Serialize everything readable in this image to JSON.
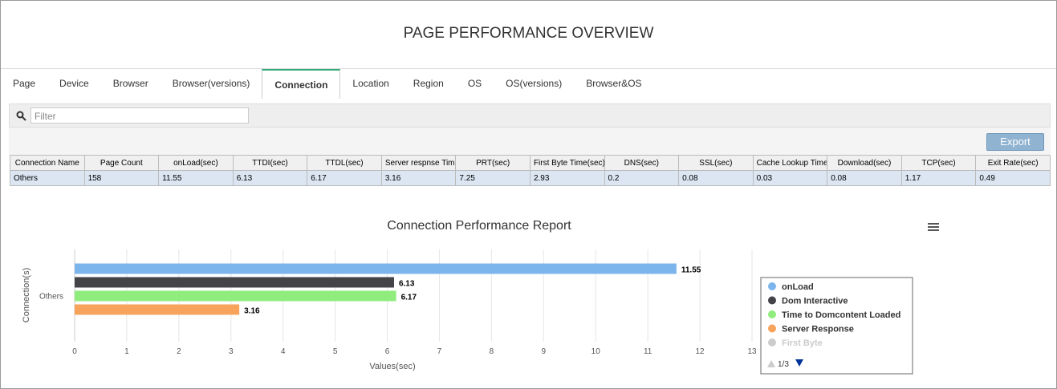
{
  "header": {
    "title": "PAGE PERFORMANCE OVERVIEW"
  },
  "tabs": [
    "Page",
    "Device",
    "Browser",
    "Browser(versions)",
    "Connection",
    "Location",
    "Region",
    "OS",
    "OS(versions)",
    "Browser&OS"
  ],
  "toolbar": {
    "filter_placeholder": "Filter",
    "export": "Export"
  },
  "table": {
    "columns": [
      "Connection Name",
      "Page Count",
      "onLoad(sec)",
      "TTDI(sec)",
      "TTDL(sec)",
      "Server respnse Time",
      "PRT(sec)",
      "First Byte Time(sec)",
      "DNS(sec)",
      "SSL(sec)",
      "Cache Lookup Time",
      "Download(sec)",
      "TCP(sec)",
      "Exit Rate(sec)"
    ],
    "rows": [
      [
        "Others",
        "158",
        "11.55",
        "6.13",
        "6.17",
        "3.16",
        "7.25",
        "2.93",
        "0.2",
        "0.08",
        "0.03",
        "0.08",
        "1.17",
        "0.49"
      ]
    ]
  },
  "chart_data": {
    "type": "bar",
    "orientation": "horizontal",
    "title": "Connection Performance Report",
    "y_label": "Connection(s)",
    "x_label": "Values(sec)",
    "categories": [
      "Others"
    ],
    "series": [
      {
        "name": "onLoad",
        "color": "#7cb5ec",
        "values": [
          11.55
        ]
      },
      {
        "name": "Dom Interactive",
        "color": "#434348",
        "values": [
          6.13
        ]
      },
      {
        "name": "Time to Domcontent Loaded",
        "color": "#90ed7d",
        "values": [
          6.17
        ]
      },
      {
        "name": "Server Response",
        "color": "#f7a35c",
        "values": [
          3.16
        ]
      }
    ],
    "hidden_legend": [
      "First Byte"
    ],
    "legend_pager": "1/3",
    "xlim": [
      0,
      13
    ],
    "xticks": [
      0,
      1,
      2,
      3,
      4,
      5,
      6,
      7,
      8,
      9,
      10,
      11,
      12,
      13
    ],
    "grid": true
  }
}
